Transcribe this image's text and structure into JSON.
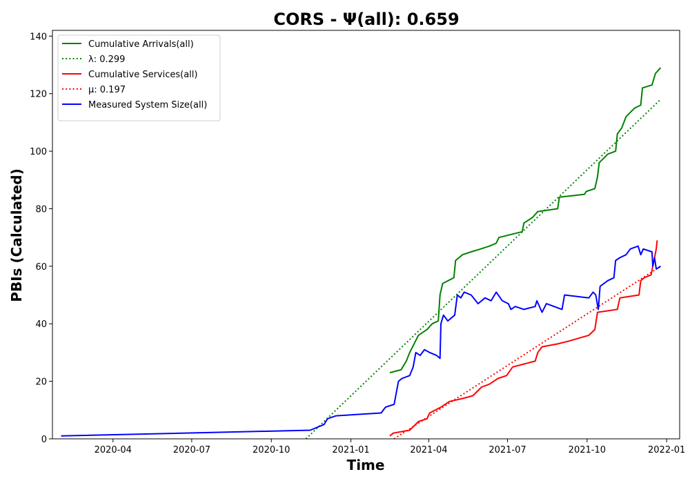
{
  "chart_data": {
    "type": "line",
    "title": "CORS -  Ψ(all): 0.659",
    "xlabel": "Time",
    "ylabel": "PBIs (Calculated)",
    "xlim": [
      "2020-01-22",
      "2022-01-16"
    ],
    "ylim": [
      0,
      142
    ],
    "x_ticks": [
      "2020-04",
      "2020-07",
      "2020-10",
      "2021-01",
      "2021-04",
      "2021-07",
      "2021-10",
      "2022-01"
    ],
    "y_ticks": [
      0,
      20,
      40,
      60,
      80,
      100,
      120,
      140
    ],
    "grid": false,
    "legend_position": "upper-left",
    "series": [
      {
        "name": "Cumulative Arrivals(all)",
        "color": "#008000",
        "style": "solid",
        "points": [
          [
            "2021-02-15",
            23
          ],
          [
            "2021-02-28",
            24
          ],
          [
            "2021-03-06",
            27
          ],
          [
            "2021-03-10",
            30
          ],
          [
            "2021-03-15",
            33
          ],
          [
            "2021-03-20",
            36
          ],
          [
            "2021-03-30",
            38
          ],
          [
            "2021-04-05",
            40
          ],
          [
            "2021-04-12",
            41
          ],
          [
            "2021-04-14",
            50
          ],
          [
            "2021-04-17",
            54
          ],
          [
            "2021-04-30",
            56
          ],
          [
            "2021-05-02",
            62
          ],
          [
            "2021-05-10",
            64
          ],
          [
            "2021-05-20",
            65
          ],
          [
            "2021-05-31",
            66
          ],
          [
            "2021-06-10",
            67
          ],
          [
            "2021-06-18",
            68
          ],
          [
            "2021-06-21",
            70
          ],
          [
            "2021-07-18",
            72
          ],
          [
            "2021-07-20",
            75
          ],
          [
            "2021-07-30",
            77
          ],
          [
            "2021-08-05",
            79
          ],
          [
            "2021-08-28",
            80
          ],
          [
            "2021-08-30",
            84
          ],
          [
            "2021-09-28",
            85
          ],
          [
            "2021-09-30",
            86
          ],
          [
            "2021-10-10",
            87
          ],
          [
            "2021-10-13",
            91
          ],
          [
            "2021-10-15",
            96
          ],
          [
            "2021-10-25",
            99
          ],
          [
            "2021-11-03",
            100
          ],
          [
            "2021-11-05",
            106
          ],
          [
            "2021-11-10",
            108
          ],
          [
            "2021-11-15",
            112
          ],
          [
            "2021-11-25",
            115
          ],
          [
            "2021-12-02",
            116
          ],
          [
            "2021-12-04",
            122
          ],
          [
            "2021-12-15",
            123
          ],
          [
            "2021-12-19",
            127
          ],
          [
            "2021-12-25",
            129
          ]
        ]
      },
      {
        "name": "λ: 0.299",
        "color": "#008000",
        "style": "dotted",
        "points": [
          [
            "2020-11-10",
            0
          ],
          [
            "2021-12-25",
            118
          ]
        ]
      },
      {
        "name": "Cumulative Services(all)",
        "color": "#ff0000",
        "style": "solid",
        "points": [
          [
            "2021-02-15",
            1
          ],
          [
            "2021-02-19",
            2
          ],
          [
            "2021-03-10",
            3
          ],
          [
            "2021-03-20",
            6
          ],
          [
            "2021-03-30",
            7
          ],
          [
            "2021-04-02",
            9
          ],
          [
            "2021-04-15",
            11
          ],
          [
            "2021-04-25",
            13
          ],
          [
            "2021-05-10",
            14
          ],
          [
            "2021-05-22",
            15
          ],
          [
            "2021-06-01",
            18
          ],
          [
            "2021-06-10",
            19
          ],
          [
            "2021-06-20",
            21
          ],
          [
            "2021-06-30",
            22
          ],
          [
            "2021-07-07",
            25
          ],
          [
            "2021-07-20",
            26
          ],
          [
            "2021-08-02",
            27
          ],
          [
            "2021-08-05",
            30
          ],
          [
            "2021-08-10",
            32
          ],
          [
            "2021-08-28",
            33
          ],
          [
            "2021-09-10",
            34
          ],
          [
            "2021-10-03",
            36
          ],
          [
            "2021-10-10",
            38
          ],
          [
            "2021-10-13",
            44
          ],
          [
            "2021-11-05",
            45
          ],
          [
            "2021-11-08",
            49
          ],
          [
            "2021-11-30",
            50
          ],
          [
            "2021-12-02",
            55
          ],
          [
            "2021-12-06",
            56
          ],
          [
            "2021-12-14",
            57
          ],
          [
            "2021-12-18",
            63
          ],
          [
            "2021-12-20",
            66
          ],
          [
            "2021-12-21",
            69
          ]
        ]
      },
      {
        "name": "μ: 0.197",
        "color": "#ff0000",
        "style": "dotted",
        "points": [
          [
            "2021-02-20",
            0
          ],
          [
            "2021-12-25",
            60
          ]
        ]
      },
      {
        "name": "Measured System Size(all)",
        "color": "#0000ff",
        "style": "solid",
        "points": [
          [
            "2020-02-01",
            1
          ],
          [
            "2020-11-15",
            3
          ],
          [
            "2020-12-01",
            5
          ],
          [
            "2020-12-05",
            7
          ],
          [
            "2020-12-15",
            8
          ],
          [
            "2021-02-05",
            9
          ],
          [
            "2021-02-10",
            11
          ],
          [
            "2021-02-20",
            12
          ],
          [
            "2021-02-25",
            20
          ],
          [
            "2021-03-01",
            21
          ],
          [
            "2021-03-10",
            22
          ],
          [
            "2021-03-14",
            25
          ],
          [
            "2021-03-17",
            30
          ],
          [
            "2021-03-22",
            29
          ],
          [
            "2021-03-27",
            31
          ],
          [
            "2021-04-02",
            30
          ],
          [
            "2021-04-10",
            29
          ],
          [
            "2021-04-14",
            28
          ],
          [
            "2021-04-15",
            40
          ],
          [
            "2021-04-18",
            43
          ],
          [
            "2021-04-23",
            41
          ],
          [
            "2021-05-01",
            43
          ],
          [
            "2021-05-04",
            50
          ],
          [
            "2021-05-08",
            49
          ],
          [
            "2021-05-12",
            51
          ],
          [
            "2021-05-20",
            50
          ],
          [
            "2021-05-28",
            47
          ],
          [
            "2021-06-05",
            49
          ],
          [
            "2021-06-12",
            48
          ],
          [
            "2021-06-18",
            51
          ],
          [
            "2021-06-25",
            48
          ],
          [
            "2021-07-02",
            47
          ],
          [
            "2021-07-05",
            45
          ],
          [
            "2021-07-10",
            46
          ],
          [
            "2021-07-20",
            45
          ],
          [
            "2021-08-02",
            46
          ],
          [
            "2021-08-04",
            48
          ],
          [
            "2021-08-10",
            44
          ],
          [
            "2021-08-15",
            47
          ],
          [
            "2021-09-02",
            45
          ],
          [
            "2021-09-05",
            50
          ],
          [
            "2021-10-03",
            49
          ],
          [
            "2021-10-08",
            51
          ],
          [
            "2021-10-11",
            50
          ],
          [
            "2021-10-14",
            45
          ],
          [
            "2021-10-16",
            53
          ],
          [
            "2021-10-25",
            55
          ],
          [
            "2021-11-01",
            56
          ],
          [
            "2021-11-03",
            62
          ],
          [
            "2021-11-08",
            63
          ],
          [
            "2021-11-15",
            64
          ],
          [
            "2021-11-20",
            66
          ],
          [
            "2021-11-29",
            67
          ],
          [
            "2021-12-02",
            64
          ],
          [
            "2021-12-05",
            66
          ],
          [
            "2021-12-15",
            65
          ],
          [
            "2021-12-16",
            60
          ],
          [
            "2021-12-18",
            63
          ],
          [
            "2021-12-20",
            59
          ],
          [
            "2021-12-25",
            60
          ]
        ]
      }
    ]
  }
}
